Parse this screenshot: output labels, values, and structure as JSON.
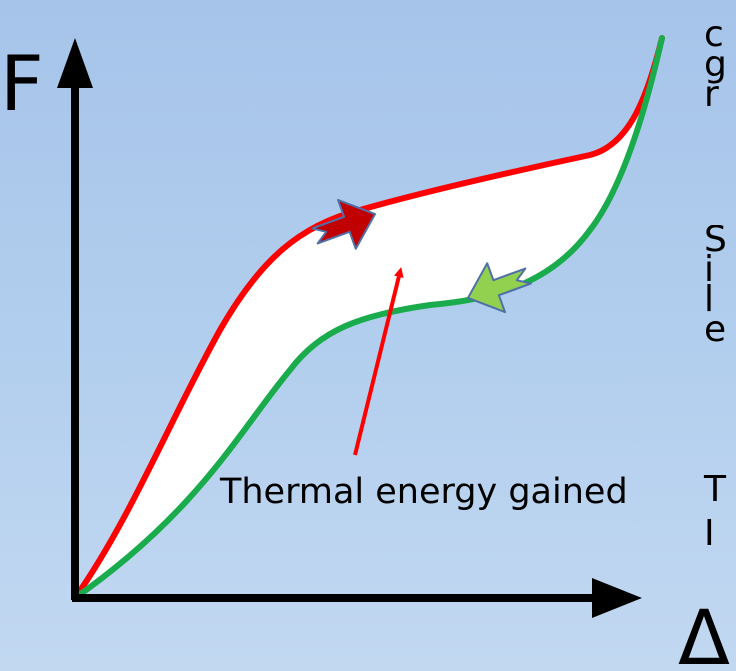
{
  "axes": {
    "y_label": "F",
    "x_label": "Δ"
  },
  "annotation": {
    "text": "Thermal energy gained"
  },
  "colors": {
    "background_top": "#a6c4ea",
    "background_bottom": "#c2d8f1",
    "loading_curve": "#ff0000",
    "unloading_curve": "#1aac4c",
    "hysteresis_fill": "#ffffff",
    "loading_arrow": "#c00000",
    "unloading_arrow": "#92d050",
    "pointer_arrow": "#ff0000",
    "axis": "#000000"
  },
  "icons": {
    "loading_direction": "up-right-arrow-icon",
    "unloading_direction": "down-left-arrow-icon"
  },
  "edge_text": {
    "block1": [
      "c",
      "g",
      "r"
    ],
    "block2": [
      "S",
      "i",
      "l",
      "e"
    ],
    "block3": [
      "T",
      "I"
    ]
  }
}
